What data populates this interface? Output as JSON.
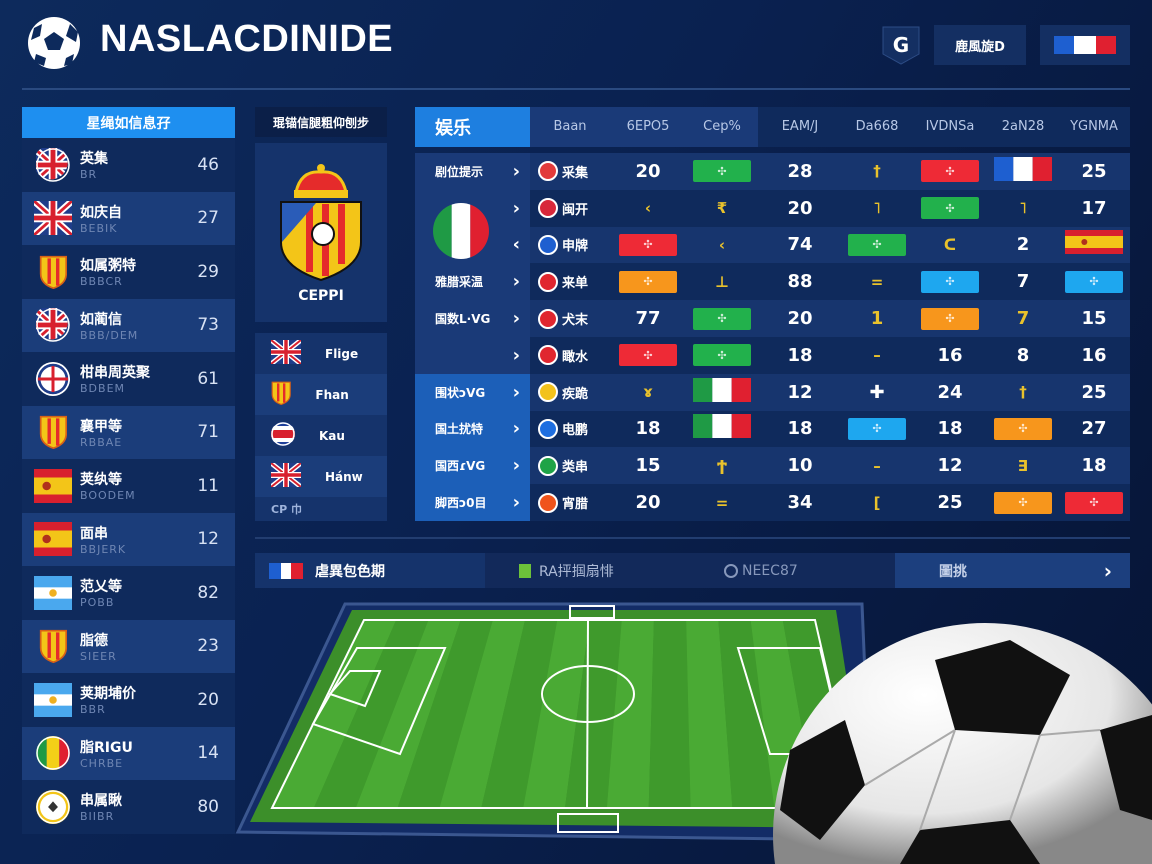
{
  "header": {
    "title": "NASLACDINIDE",
    "button_label": "鹿風旋D",
    "shield_label": "G"
  },
  "colors": {
    "accent": "#1e8ff0",
    "panel": "#0f2a5c",
    "panel_alt": "#1b3d7a",
    "green": "#22b14c",
    "red": "#ee2a36",
    "orange": "#f7961c",
    "sky": "#1ea7ef"
  },
  "sidebar": {
    "title": "星绳如信息孖",
    "items": [
      {
        "name": "英集",
        "sub": "BR",
        "value": "46",
        "icon": "uk-round"
      },
      {
        "name": "如庆自",
        "sub": "BEBIK",
        "value": "27",
        "icon": "uk"
      },
      {
        "name": "如属粥特",
        "sub": "BBBCR",
        "value": "29",
        "icon": "crest"
      },
      {
        "name": "如蔺信",
        "sub": "BBB/DEM",
        "value": "73",
        "icon": "uk-round"
      },
      {
        "name": "柑串周英聚",
        "sub": "BDBEM",
        "value": "61",
        "icon": "club-round"
      },
      {
        "name": "襄甲等",
        "sub": "RBBAE",
        "value": "71",
        "icon": "crest"
      },
      {
        "name": "荚纨等",
        "sub": "BOODEM",
        "value": "11",
        "icon": "es"
      },
      {
        "name": "面串",
        "sub": "BBJERK",
        "value": "12",
        "icon": "es"
      },
      {
        "name": "范乂等",
        "sub": "POBB",
        "value": "82",
        "icon": "ar"
      },
      {
        "name": "脂德",
        "sub": "SIEER",
        "value": "23",
        "icon": "crest"
      },
      {
        "name": "荚期埔价",
        "sub": "BBR",
        "value": "20",
        "icon": "ar"
      },
      {
        "name": "脂RIGU",
        "sub": "CHRBE",
        "value": "14",
        "icon": "ml-round"
      },
      {
        "name": "串属瞅",
        "sub": "BIIBR",
        "value": "80",
        "icon": "ball-round"
      }
    ]
  },
  "middle": {
    "title": "琨锚信腿粗仰刨步",
    "crest_label": "CEPPI",
    "items": [
      {
        "label": "Flige",
        "icon": "uk"
      },
      {
        "label": "Fhan",
        "icon": "crest"
      },
      {
        "label": "Kau",
        "icon": "cr-round"
      },
      {
        "label": "Hánw",
        "icon": "uk"
      },
      {
        "label": "CP 巾",
        "icon": ""
      }
    ]
  },
  "table": {
    "corner": "娱乐",
    "headers": [
      "Baan",
      "6EPO5",
      "Cep%",
      "EAM/J",
      "Da668",
      "IVDNSa",
      "2aN28",
      "YGNMA"
    ],
    "rows": [
      {
        "label": "剧位提示",
        "team": "采集",
        "badge": "#e23b3b",
        "cells": [
          {
            "t": "num",
            "v": "20"
          },
          {
            "t": "chip",
            "c": "green"
          },
          {
            "t": "num",
            "v": "28"
          },
          {
            "t": "glyph",
            "v": "†"
          },
          {
            "t": "chip",
            "c": "red"
          },
          {
            "t": "flag",
            "f": "fr"
          },
          {
            "t": "num",
            "v": "25"
          }
        ]
      },
      {
        "label": "",
        "team": "闽开",
        "badge": "#d8283a",
        "cells": [
          {
            "t": "glyph",
            "v": "‹"
          },
          {
            "t": "glyph",
            "v": "₹"
          },
          {
            "t": "num",
            "v": "20"
          },
          {
            "t": "glyph",
            "v": "˥"
          },
          {
            "t": "chip",
            "c": "green"
          },
          {
            "t": "glyph",
            "v": "˥"
          },
          {
            "t": "num",
            "v": "17"
          }
        ]
      },
      {
        "label": "",
        "team": "申牌",
        "badge": "#1e5fd0",
        "cells": [
          {
            "t": "chip",
            "c": "red"
          },
          {
            "t": "glyph",
            "v": "‹"
          },
          {
            "t": "num",
            "v": "74"
          },
          {
            "t": "chip",
            "c": "green"
          },
          {
            "t": "glyph",
            "v": "ᑕ"
          },
          {
            "t": "num",
            "v": "2"
          },
          {
            "t": "flag",
            "f": "es"
          }
        ]
      },
      {
        "label": "雅腊采温",
        "team": "来单",
        "badge": "#e0262f",
        "cells": [
          {
            "t": "chip",
            "c": "orange"
          },
          {
            "t": "glyph",
            "v": "⊥"
          },
          {
            "t": "num",
            "v": "88"
          },
          {
            "t": "glyph",
            "v": "="
          },
          {
            "t": "chip",
            "c": "sky"
          },
          {
            "t": "num",
            "v": "7"
          },
          {
            "t": "chip",
            "c": "sky"
          }
        ]
      },
      {
        "label": "国数L·VG",
        "team": "犬末",
        "badge": "#e0262f",
        "cells": [
          {
            "t": "num",
            "v": "77"
          },
          {
            "t": "chip",
            "c": "green"
          },
          {
            "t": "num",
            "v": "20"
          },
          {
            "t": "ynum",
            "v": "1"
          },
          {
            "t": "chip",
            "c": "orange"
          },
          {
            "t": "ynum",
            "v": "7"
          },
          {
            "t": "num",
            "v": "15"
          }
        ]
      },
      {
        "label": "",
        "team": "瞰水",
        "badge": "#e0262f",
        "cells": [
          {
            "t": "chip",
            "c": "red"
          },
          {
            "t": "chip",
            "c": "green"
          },
          {
            "t": "num",
            "v": "18"
          },
          {
            "t": "glyph",
            "v": "–"
          },
          {
            "t": "num",
            "v": "16"
          },
          {
            "t": "num",
            "v": "8"
          },
          {
            "t": "num",
            "v": "16"
          }
        ]
      },
      {
        "label": "围状ɔVG",
        "team": "疾跪",
        "badge": "#f2c21c",
        "cells": [
          {
            "t": "glyph",
            "v": "ɤ"
          },
          {
            "t": "flag",
            "f": "it"
          },
          {
            "t": "num",
            "v": "12"
          },
          {
            "t": "num",
            "v": "✚"
          },
          {
            "t": "num",
            "v": "24"
          },
          {
            "t": "glyph",
            "v": "†"
          },
          {
            "t": "num",
            "v": "25"
          }
        ]
      },
      {
        "label": "国土扰特",
        "team": "电鹏",
        "badge": "#1e6ee0",
        "cells": [
          {
            "t": "num",
            "v": "18"
          },
          {
            "t": "flag",
            "f": "it"
          },
          {
            "t": "num",
            "v": "18"
          },
          {
            "t": "chip",
            "c": "sky"
          },
          {
            "t": "num",
            "v": "18"
          },
          {
            "t": "chip",
            "c": "orange"
          },
          {
            "t": "num",
            "v": "27"
          }
        ]
      },
      {
        "label": "国西ɾVG",
        "team": "类串",
        "badge": "#1fa347",
        "cells": [
          {
            "t": "num",
            "v": "15"
          },
          {
            "t": "glyph",
            "v": "Ϯ"
          },
          {
            "t": "num",
            "v": "10"
          },
          {
            "t": "glyph",
            "v": "–"
          },
          {
            "t": "num",
            "v": "12"
          },
          {
            "t": "glyph",
            "v": "∃"
          },
          {
            "t": "num",
            "v": "18"
          }
        ]
      },
      {
        "label": "脚西ɔ0目",
        "team": "宵腊",
        "badge": "#f0541c",
        "cells": [
          {
            "t": "num",
            "v": "20"
          },
          {
            "t": "glyph",
            "v": "="
          },
          {
            "t": "num",
            "v": "34"
          },
          {
            "t": "glyph",
            "v": "["
          },
          {
            "t": "num",
            "v": "25"
          },
          {
            "t": "chip",
            "c": "orange"
          },
          {
            "t": "chip",
            "c": "red"
          }
        ]
      }
    ]
  },
  "bottom_bar": {
    "item1": "虐異包色期",
    "item2": "RA抨掴扇悱",
    "item3": "NEEC87",
    "item4": "圖挑"
  }
}
